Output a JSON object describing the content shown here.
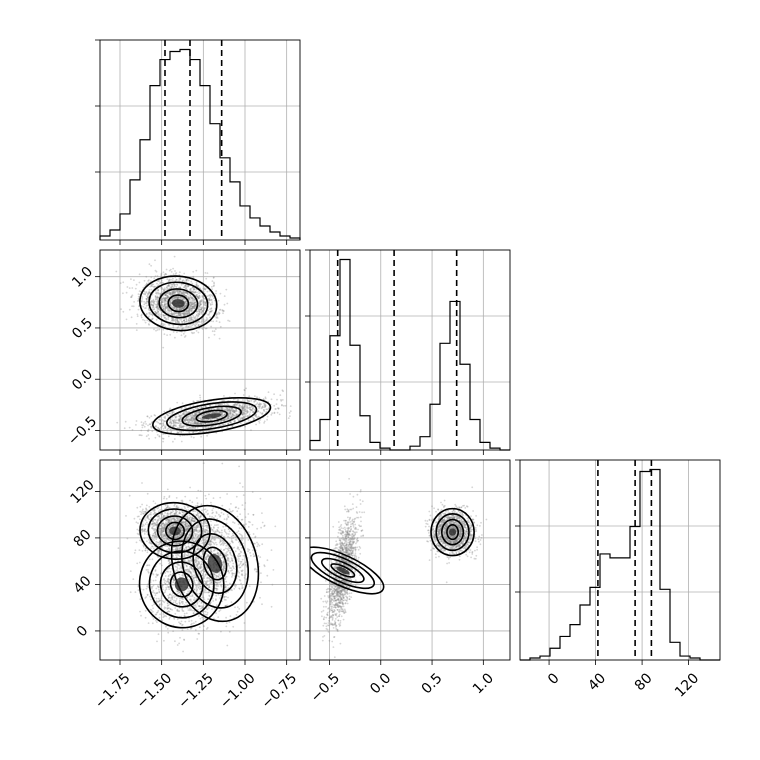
{
  "chart_data": {
    "type": "corner",
    "x_ticks": {
      "p0": [
        "−1.75",
        "−1.50",
        "−1.25",
        "−1.00",
        "−0.75"
      ],
      "p1": [
        "−0.5",
        "0.0",
        "0.5",
        "1.0"
      ],
      "p2": [
        "0",
        "40",
        "80",
        "120"
      ]
    },
    "y_ticks": {
      "p1": [
        "1.0",
        "0.5",
        "0.0",
        "−0.5"
      ],
      "p2": [
        "120",
        "80",
        "40",
        "0"
      ]
    },
    "x_tick_values": {
      "p0": [
        -1.75,
        -1.5,
        -1.25,
        -1.0,
        -0.75
      ],
      "p1": [
        -0.5,
        0.0,
        0.5,
        1.0
      ],
      "p2": [
        0,
        40,
        80,
        120
      ]
    },
    "y_tick_values": {
      "p1": [
        1.0,
        0.5,
        0.0,
        -0.5
      ],
      "p2": [
        120,
        80,
        40,
        0
      ]
    },
    "ranges": {
      "p0": [
        -1.87,
        -0.67
      ],
      "p1": [
        -0.69,
        1.26
      ],
      "p2": [
        -25,
        147
      ]
    },
    "quantiles": {
      "p0": [
        -1.48,
        -1.33,
        -1.14
      ],
      "p1": [
        -0.42,
        0.13,
        0.74
      ],
      "p2": [
        42,
        74,
        88
      ]
    },
    "hist_p0": {
      "edges_start": -1.87,
      "bin_width": 0.06,
      "counts": [
        0.02,
        0.05,
        0.13,
        0.3,
        0.5,
        0.77,
        0.9,
        0.94,
        0.95,
        0.9,
        0.77,
        0.58,
        0.41,
        0.29,
        0.17,
        0.11,
        0.07,
        0.04,
        0.02,
        0.01
      ]
    },
    "hist_p1": {
      "edges_start": -0.69,
      "bin_width": 0.0975,
      "counts": [
        0.05,
        0.16,
        0.6,
        1.0,
        0.55,
        0.18,
        0.04,
        0.01,
        0.0,
        0.0,
        0.02,
        0.07,
        0.24,
        0.56,
        0.78,
        0.45,
        0.16,
        0.04,
        0.01,
        0.0
      ]
    },
    "hist_p2": {
      "edges_start": -25,
      "bin_width": 8.6,
      "counts": [
        0.0,
        0.01,
        0.02,
        0.06,
        0.12,
        0.18,
        0.28,
        0.37,
        0.54,
        0.52,
        0.52,
        0.68,
        0.96,
        0.97,
        0.36,
        0.09,
        0.02,
        0.01,
        0.0,
        0.0
      ]
    },
    "scatter_modes_p0_p1": [
      {
        "x": -1.4,
        "y": 0.74,
        "sx": 0.11,
        "sy": 0.12,
        "rho": -0.15,
        "w": 0.52
      },
      {
        "x": -1.2,
        "y": -0.36,
        "sx": 0.17,
        "sy": 0.08,
        "rho": 0.55,
        "w": 0.48
      }
    ],
    "scatter_modes_p0_p2": [
      {
        "x": -1.42,
        "y": 86,
        "sx": 0.1,
        "sy": 11,
        "rho": -0.1,
        "w": 0.45
      },
      {
        "x": -1.18,
        "y": 58,
        "sx": 0.12,
        "sy": 24,
        "rho": 0.2,
        "w": 0.35
      },
      {
        "x": -1.38,
        "y": 40,
        "sx": 0.12,
        "sy": 18,
        "rho": 0.3,
        "w": 0.2
      }
    ],
    "scatter_modes_p1_p2": [
      {
        "x": 0.7,
        "y": 85,
        "sx": 0.1,
        "sy": 9,
        "rho": 0.0,
        "w": 0.5
      },
      {
        "x": -0.37,
        "y": 52,
        "sx": 0.07,
        "sy": 22,
        "rho": 0.6,
        "w": 0.5
      }
    ]
  }
}
